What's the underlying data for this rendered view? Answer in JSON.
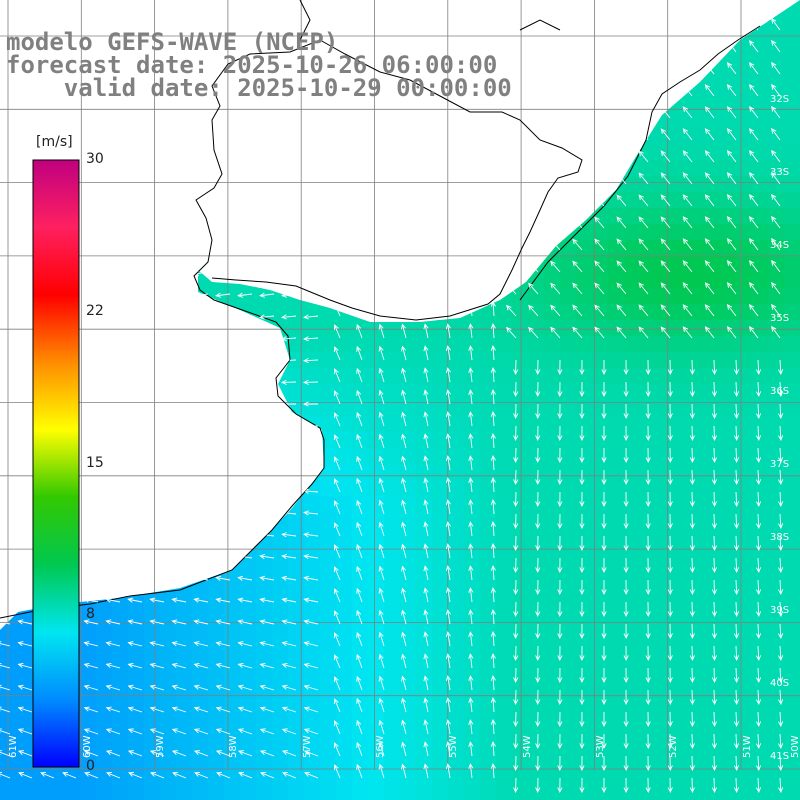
{
  "title": {
    "line1": "modelo GEFS-WAVE (NCEP)",
    "line2": "forecast date: 2025-10-26 06:00:00",
    "line3": "    valid date: 2025-10-29 00:00:00"
  },
  "colorbar": {
    "unit": "[m/s]",
    "ticks": [
      "30",
      "22",
      "15",
      "8",
      "0"
    ],
    "min": 0,
    "max": 30,
    "colors": [
      "#0000ff",
      "#008cff",
      "#00e6f0",
      "#00c850",
      "#32c800",
      "#ffff00",
      "#ff8c00",
      "#ff0000",
      "#ff2060",
      "#c00080"
    ]
  },
  "grid": {
    "lat_labels": [
      "32S",
      "33S",
      "34S",
      "35S",
      "36S",
      "37S",
      "38S",
      "39S",
      "40S",
      "41S"
    ],
    "lon_labels": [
      "61W",
      "60W",
      "59W",
      "58W",
      "57W",
      "56W",
      "55W",
      "54W",
      "53W",
      "52W",
      "51W",
      "50W"
    ]
  },
  "colors": {
    "land": "#ffffff",
    "coast": "#000000",
    "grid_line": "#7f7f7f",
    "arrow": "#ffffff",
    "title_text": "#808080"
  },
  "wind_field": {
    "variable": "wind speed",
    "units": "m/s",
    "nearshore_southwest_speed": 4,
    "offshore_east_speed": 8,
    "northeast_maximum_speed": 10
  }
}
